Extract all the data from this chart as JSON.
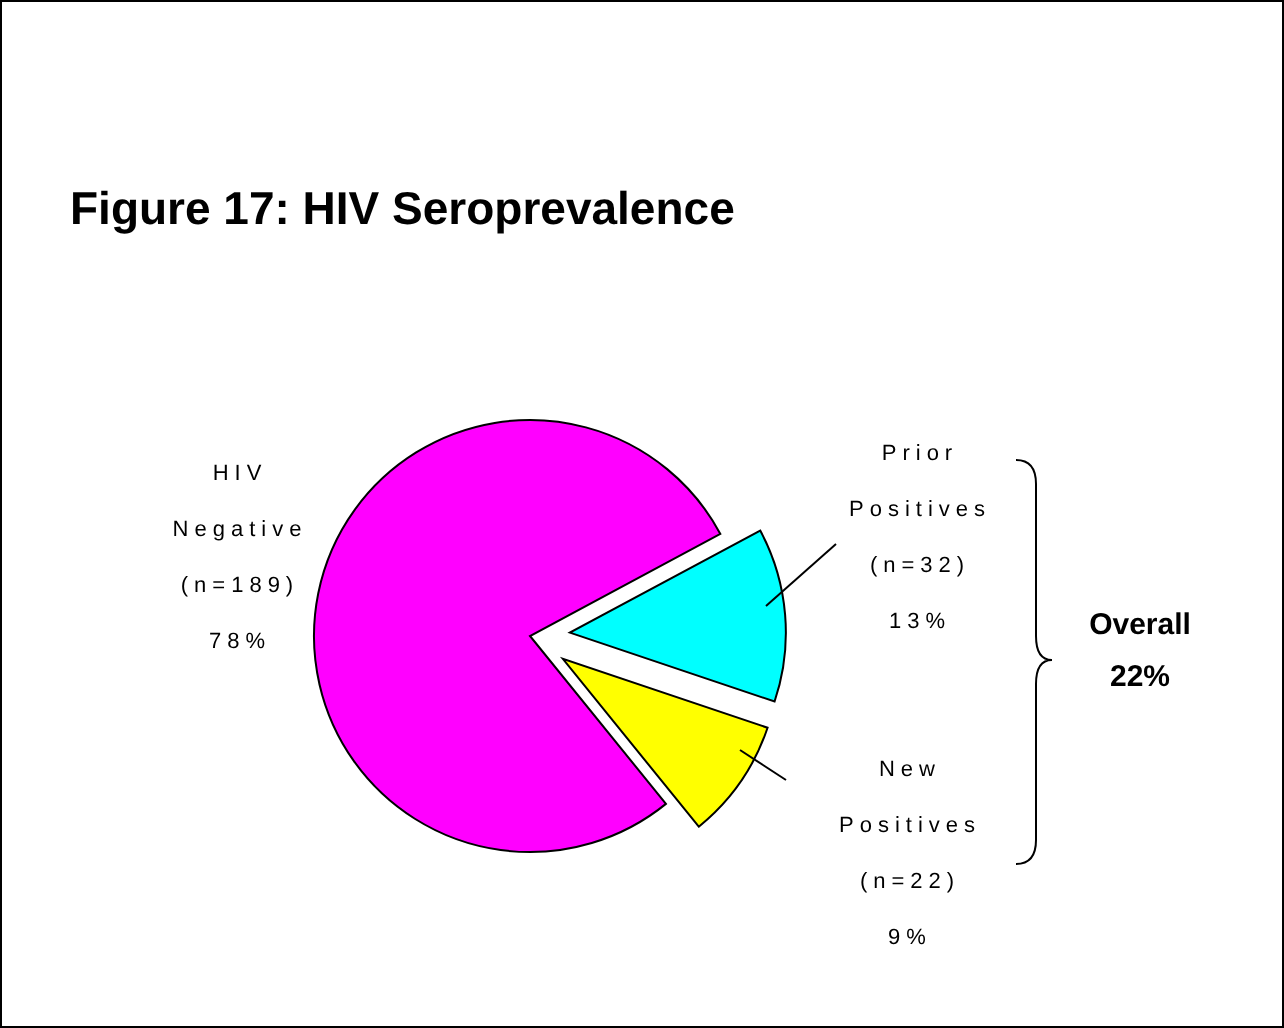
{
  "chart_data": {
    "type": "pie",
    "title": "Figure 17: HIV Seroprevalence",
    "categories": [
      "HIV Negative",
      "Prior Positives",
      "New Positives"
    ],
    "values": [
      78,
      13,
      9
    ],
    "colors": [
      "#ff00ff",
      "#00ffff",
      "#ffff00"
    ],
    "value_labels": [
      "(n=189)\n78%",
      "(n=32)\n13%",
      "(n=22)\n9%"
    ],
    "annotations": [
      "Overall\n22%"
    ]
  }
}
